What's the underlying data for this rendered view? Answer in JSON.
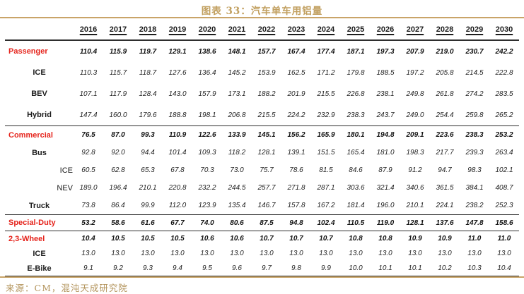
{
  "title": "图表 33：汽车单车用铝量",
  "source": "来源：CM，混沌天成研究院",
  "colors": {
    "accent_red": "#e5231b",
    "gold_accent": "#c2a060",
    "rule_dark": "#2e2e2e",
    "background": "#ffffff"
  },
  "chart_data": {
    "type": "table",
    "title": "图表 33：汽车单车用铝量",
    "source": "来源：CM，混沌天成研究院",
    "columns": [
      "2016",
      "2017",
      "2018",
      "2019",
      "2020",
      "2021",
      "2022",
      "2023",
      "2024",
      "2025",
      "2026",
      "2027",
      "2028",
      "2029",
      "2030"
    ],
    "rows": [
      {
        "label": "Passenger",
        "style": "section",
        "group": "passenger",
        "values": [
          110.4,
          115.9,
          119.7,
          129.1,
          138.6,
          148.1,
          157.7,
          167.4,
          177.4,
          187.1,
          197.3,
          207.9,
          219.0,
          230.7,
          242.2
        ]
      },
      {
        "label": "ICE",
        "style": "sub",
        "group": "passenger",
        "values": [
          110.3,
          115.7,
          118.7,
          127.6,
          136.4,
          145.2,
          153.9,
          162.5,
          171.2,
          179.8,
          188.5,
          197.2,
          205.8,
          214.5,
          222.8
        ]
      },
      {
        "label": "BEV",
        "style": "sub",
        "group": "passenger",
        "values": [
          107.1,
          117.9,
          128.4,
          143.0,
          157.9,
          173.1,
          188.2,
          201.9,
          215.5,
          226.8,
          238.1,
          249.8,
          261.8,
          274.2,
          283.5
        ]
      },
      {
        "label": "Hybrid",
        "style": "sub",
        "group": "passenger",
        "values": [
          147.4,
          160.0,
          179.6,
          188.8,
          198.1,
          206.8,
          215.5,
          224.2,
          232.9,
          238.3,
          243.7,
          249.0,
          254.4,
          259.8,
          265.2
        ]
      },
      {
        "label": "Commercial",
        "style": "section",
        "group": "commercial",
        "values": [
          76.5,
          87.0,
          99.3,
          110.9,
          122.6,
          133.9,
          145.1,
          156.2,
          165.9,
          180.1,
          194.8,
          209.1,
          223.6,
          238.3,
          253.2
        ]
      },
      {
        "label": "Bus",
        "style": "sub",
        "group": "commercial",
        "values": [
          92.8,
          92.0,
          94.4,
          101.4,
          109.3,
          118.2,
          128.1,
          139.1,
          151.5,
          165.4,
          181.0,
          198.3,
          217.7,
          239.3,
          263.4
        ]
      },
      {
        "label": "ICE",
        "style": "subsub",
        "group": "commercial",
        "values": [
          60.5,
          62.8,
          65.3,
          67.8,
          70.3,
          73.0,
          75.7,
          78.6,
          81.5,
          84.6,
          87.9,
          91.2,
          94.7,
          98.3,
          102.1
        ]
      },
      {
        "label": "NEV",
        "style": "subsub",
        "group": "commercial",
        "values": [
          189.0,
          196.4,
          210.1,
          220.8,
          232.2,
          244.5,
          257.7,
          271.8,
          287.1,
          303.6,
          321.4,
          340.6,
          361.5,
          384.1,
          408.7
        ]
      },
      {
        "label": "Truck",
        "style": "sub",
        "group": "commercial",
        "values": [
          73.8,
          86.4,
          99.9,
          112.0,
          123.9,
          135.4,
          146.7,
          157.8,
          167.2,
          181.4,
          196.0,
          210.1,
          224.1,
          238.2,
          252.3
        ]
      },
      {
        "label": "Special-Duty",
        "style": "section",
        "group": "special",
        "values": [
          53.2,
          58.6,
          61.6,
          67.7,
          74.0,
          80.6,
          87.5,
          94.8,
          102.4,
          110.5,
          119.0,
          128.1,
          137.6,
          147.8,
          158.6
        ]
      },
      {
        "label": "2,3-Wheel",
        "style": "section",
        "group": "wheel",
        "values": [
          10.4,
          10.5,
          10.5,
          10.5,
          10.6,
          10.6,
          10.7,
          10.7,
          10.7,
          10.8,
          10.8,
          10.9,
          10.9,
          11.0,
          11.0
        ]
      },
      {
        "label": "ICE",
        "style": "sub",
        "group": "wheel",
        "values": [
          13.0,
          13.0,
          13.0,
          13.0,
          13.0,
          13.0,
          13.0,
          13.0,
          13.0,
          13.0,
          13.0,
          13.0,
          13.0,
          13.0,
          13.0
        ]
      },
      {
        "label": "E-Bike",
        "style": "sub",
        "group": "wheel",
        "values": [
          9.1,
          9.2,
          9.3,
          9.4,
          9.5,
          9.6,
          9.7,
          9.8,
          9.9,
          10.0,
          10.1,
          10.1,
          10.2,
          10.3,
          10.4
        ]
      }
    ]
  }
}
